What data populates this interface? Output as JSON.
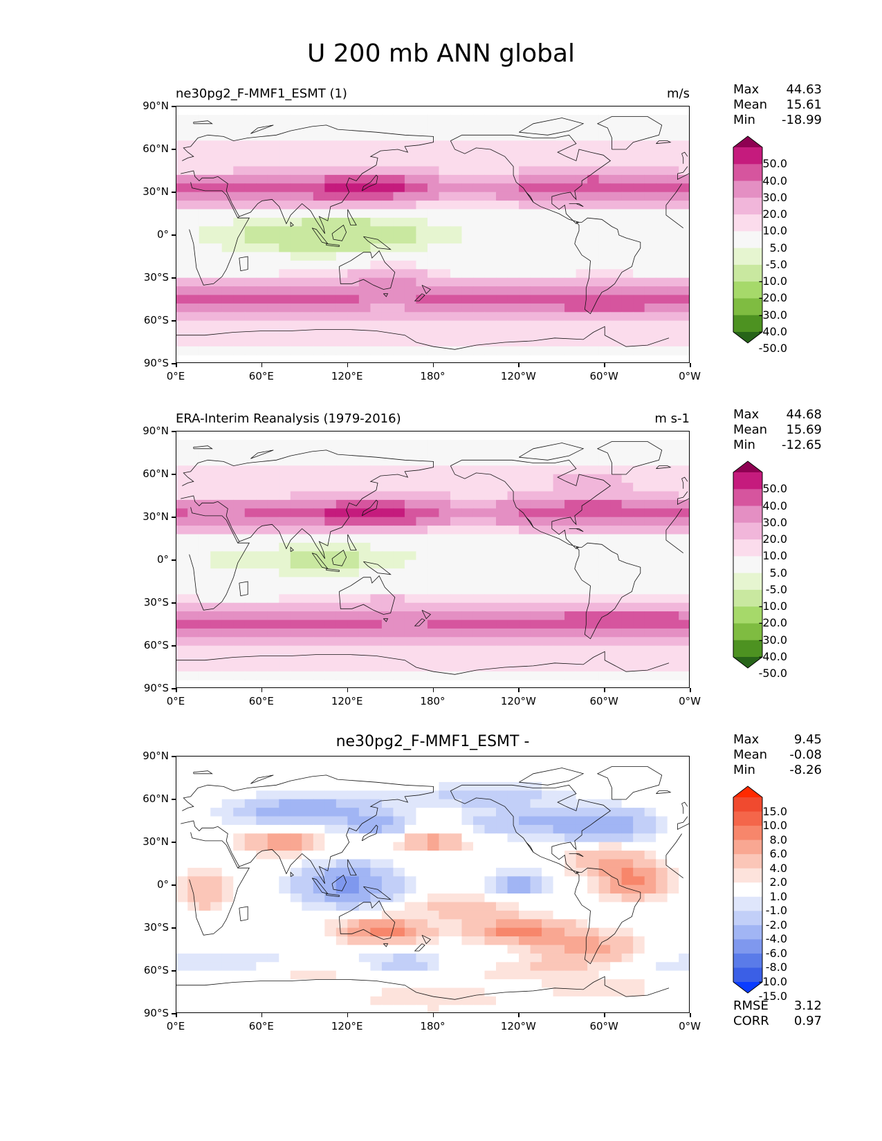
{
  "figure": {
    "title": "U 200 mb ANN global"
  },
  "axes": {
    "y_ticks": [
      "90°N",
      "60°N",
      "30°N",
      "0°",
      "30°S",
      "60°S",
      "90°S"
    ],
    "x_ticks": [
      "0°E",
      "60°E",
      "120°E",
      "180°",
      "120°W",
      "60°W",
      "0°W"
    ]
  },
  "panels": [
    {
      "title_left": "ne30pg2_F-MMF1_ESMT (1)",
      "title_right": "m/s",
      "title_center": "",
      "stats": [
        {
          "key": "Max",
          "value": "44.63"
        },
        {
          "key": "Mean",
          "value": "15.61"
        },
        {
          "key": "Min",
          "value": "-18.99"
        }
      ],
      "colorbar": {
        "labels": [
          "50.0",
          "40.0",
          "30.0",
          "20.0",
          "10.0",
          "5.0",
          "-5.0",
          "-10.0",
          "-20.0",
          "-30.0",
          "-40.0",
          "-50.0"
        ],
        "colors": [
          "#8e0152",
          "#c51b7d",
          "#d6559e",
          "#e48fc3",
          "#f1b6da",
          "#fbdcec",
          "#f7f7f7",
          "#e6f5d0",
          "#c9e8a0",
          "#a6d96a",
          "#7fbc41",
          "#4d9221",
          "#276419"
        ]
      },
      "footer": []
    },
    {
      "title_left": "ERA-Interim Reanalysis (1979-2016)",
      "title_right": "m s-1",
      "title_center": "",
      "stats": [
        {
          "key": "Max",
          "value": "44.68"
        },
        {
          "key": "Mean",
          "value": "15.69"
        },
        {
          "key": "Min",
          "value": "-12.65"
        }
      ],
      "colorbar": {
        "labels": [
          "50.0",
          "40.0",
          "30.0",
          "20.0",
          "10.0",
          "5.0",
          "-5.0",
          "-10.0",
          "-20.0",
          "-30.0",
          "-40.0",
          "-50.0"
        ],
        "colors": [
          "#8e0152",
          "#c51b7d",
          "#d6559e",
          "#e48fc3",
          "#f1b6da",
          "#fbdcec",
          "#f7f7f7",
          "#e6f5d0",
          "#c9e8a0",
          "#a6d96a",
          "#7fbc41",
          "#4d9221",
          "#276419"
        ]
      },
      "footer": []
    },
    {
      "title_left": "",
      "title_right": "",
      "title_center": "ne30pg2_F-MMF1_ESMT -",
      "stats": [
        {
          "key": "Max",
          "value": "9.45"
        },
        {
          "key": "Mean",
          "value": "-0.08"
        },
        {
          "key": "Min",
          "value": "-8.26"
        }
      ],
      "colorbar": {
        "labels": [
          "15.0",
          "10.0",
          "8.0",
          "6.0",
          "4.0",
          "2.0",
          "1.0",
          "-1.0",
          "-2.0",
          "-4.0",
          "-6.0",
          "-8.0",
          "-10.0",
          "-15.0"
        ],
        "colors": [
          "#ff2a00",
          "#f04a2f",
          "#f4664a",
          "#f7866b",
          "#f9a792",
          "#fbc6b8",
          "#fde3dc",
          "#ffffff",
          "#dfe6fb",
          "#c2cff8",
          "#a1b5f4",
          "#7f98ee",
          "#5a7be9",
          "#3b5fe6",
          "#0a3cff"
        ]
      },
      "footer": [
        {
          "key": "RMSE",
          "value": "3.12"
        },
        {
          "key": "CORR",
          "value": "0.97"
        }
      ]
    }
  ]
}
